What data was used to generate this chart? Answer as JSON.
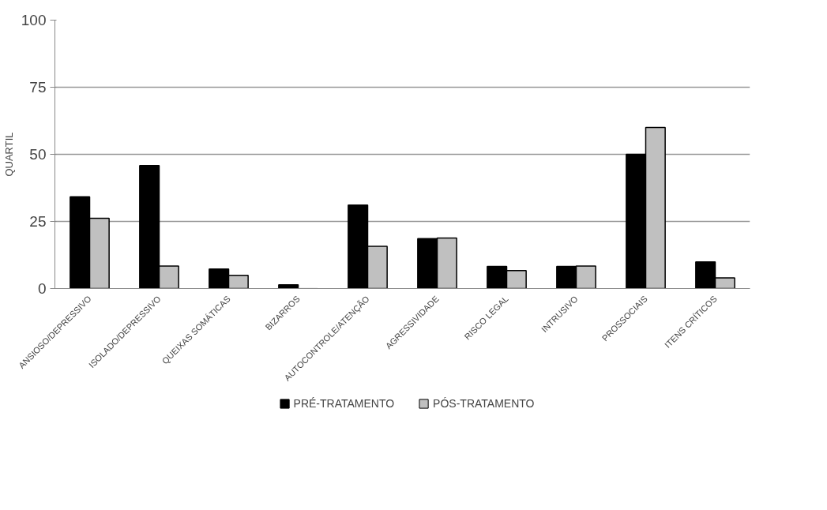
{
  "chart_data": {
    "type": "bar",
    "ylabel": "QUARTIL",
    "categories": [
      "ANSIOSO/DEPRESSIVO",
      "ISOLADO/DEPRESSIVO",
      "QUEIXAS SOMÁTICAS",
      "BIZARROS",
      "AUTOCONTROLE/ATENÇÃO",
      "AGRESSIVIDADE",
      "RISCO LEGAL",
      "INTRUSIVO",
      "PROSSOCIAIS",
      "ITENS CRÍTICOS"
    ],
    "series": [
      {
        "name": "PRÉ-TRATAMENTO",
        "color": "#000000",
        "values": [
          34.2,
          45.8,
          7.3,
          1.4,
          31.1,
          18.6,
          8.2,
          8.2,
          50,
          9.9
        ]
      },
      {
        "name": "PÓS-TRATAMENTO",
        "color": "#c0c0c0",
        "values": [
          26.2,
          8.4,
          4.9,
          0,
          15.7,
          18.8,
          6.7,
          8.4,
          60,
          4.0
        ]
      }
    ],
    "ylim": [
      0,
      100
    ],
    "yticks": [
      0,
      25,
      50,
      75,
      100
    ],
    "grid": "y",
    "legend": "bottom"
  }
}
